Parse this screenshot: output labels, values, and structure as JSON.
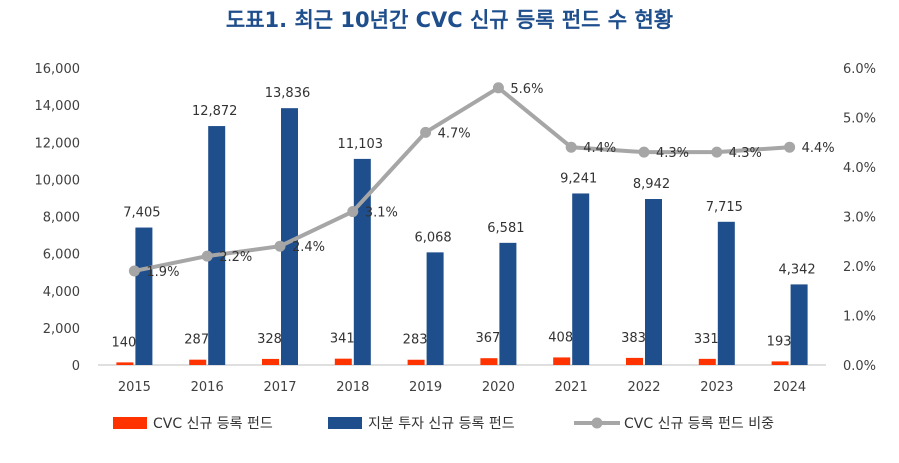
{
  "chart_data": {
    "type": "bar",
    "title": "도표1. 최근 10년간 CVC 신규 등록 펀드 수 현황",
    "categories": [
      "2015",
      "2016",
      "2017",
      "2018",
      "2019",
      "2020",
      "2021",
      "2022",
      "2023",
      "2024"
    ],
    "series": [
      {
        "name": "CVC 신규 등록 펀드",
        "type": "bar",
        "axis": "left",
        "color": "#ff3300",
        "values": [
          140,
          287,
          328,
          341,
          283,
          367,
          408,
          383,
          331,
          193
        ]
      },
      {
        "name": "지분 투자 신규 등록 펀드",
        "type": "bar",
        "axis": "left",
        "color": "#1f4e8c",
        "values": [
          7405,
          12872,
          13836,
          11103,
          6068,
          6581,
          9241,
          8942,
          7715,
          4342
        ]
      },
      {
        "name": "CVC 신규 등록 펀드 비중",
        "type": "line",
        "axis": "right",
        "color": "#a6a6a6",
        "values": [
          1.9,
          2.2,
          2.4,
          3.1,
          4.7,
          5.6,
          4.4,
          4.3,
          4.3,
          4.4
        ]
      }
    ],
    "ylim": [
      0,
      16000
    ],
    "yticks": [
      "0",
      "2,000",
      "4,000",
      "6,000",
      "8,000",
      "10,000",
      "12,000",
      "14,000",
      "16,000"
    ],
    "y2lim": [
      0,
      6
    ],
    "y2ticks": [
      "0.0%",
      "1.0%",
      "2.0%",
      "3.0%",
      "4.0%",
      "5.0%",
      "6.0%"
    ],
    "bar_labels_a": [
      "140",
      "287",
      "328",
      "341",
      "283",
      "367",
      "408",
      "383",
      "331",
      "193"
    ],
    "bar_labels_b": [
      "7,405",
      "12,872",
      "13,836",
      "11,103",
      "6,068",
      "6,581",
      "9,241",
      "8,942",
      "7,715",
      "4,342"
    ],
    "line_labels": [
      "1.9%",
      "2.2%",
      "2.4%",
      "3.1%",
      "4.7%",
      "5.6%",
      "4.4%",
      "4.3%",
      "4.3%",
      "4.4%"
    ],
    "legend_position": "bottom",
    "grid": false
  }
}
